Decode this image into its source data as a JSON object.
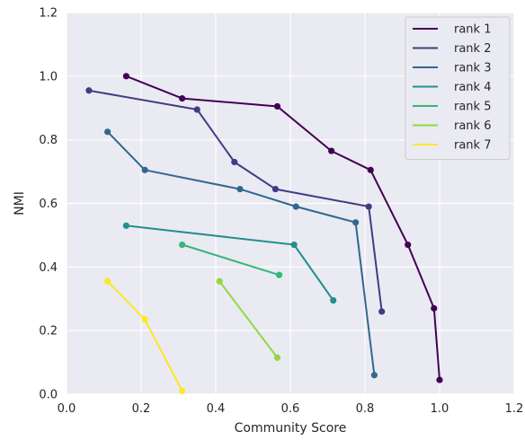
{
  "chart_data": {
    "type": "line",
    "title": "",
    "xlabel": "Community Score",
    "ylabel": "NMI",
    "xlim": [
      0.0,
      1.2
    ],
    "ylim": [
      0.0,
      1.2
    ],
    "xticks": [
      "0.0",
      "0.2",
      "0.4",
      "0.6",
      "0.8",
      "1.0",
      "1.2"
    ],
    "yticks": [
      "0.0",
      "0.2",
      "0.4",
      "0.6",
      "0.8",
      "1.0",
      "1.2"
    ],
    "grid": true,
    "legend_position": "top-right",
    "series": [
      {
        "name": "rank 1",
        "color": "#440154",
        "x": [
          0.16,
          0.31,
          0.565,
          0.71,
          0.815,
          0.915,
          0.985,
          1.0
        ],
        "y": [
          1.0,
          0.93,
          0.905,
          0.765,
          0.705,
          0.47,
          0.27,
          0.045
        ]
      },
      {
        "name": "rank 2",
        "color": "#443a83",
        "x": [
          0.06,
          0.35,
          0.45,
          0.56,
          0.81,
          0.845
        ],
        "y": [
          0.955,
          0.895,
          0.73,
          0.645,
          0.59,
          0.26
        ]
      },
      {
        "name": "rank 3",
        "color": "#31688e",
        "x": [
          0.11,
          0.21,
          0.465,
          0.615,
          0.775,
          0.825
        ],
        "y": [
          0.825,
          0.705,
          0.645,
          0.59,
          0.54,
          0.06
        ]
      },
      {
        "name": "rank 4",
        "color": "#21918c",
        "x": [
          0.16,
          0.61,
          0.715
        ],
        "y": [
          0.53,
          0.47,
          0.295
        ]
      },
      {
        "name": "rank 5",
        "color": "#35b779",
        "x": [
          0.31,
          0.57
        ],
        "y": [
          0.47,
          0.375
        ]
      },
      {
        "name": "rank 6",
        "color": "#90d743",
        "x": [
          0.41,
          0.565
        ],
        "y": [
          0.355,
          0.115
        ]
      },
      {
        "name": "rank 7",
        "color": "#fde725",
        "x": [
          0.11,
          0.21,
          0.31
        ],
        "y": [
          0.355,
          0.235,
          0.01
        ]
      }
    ]
  }
}
